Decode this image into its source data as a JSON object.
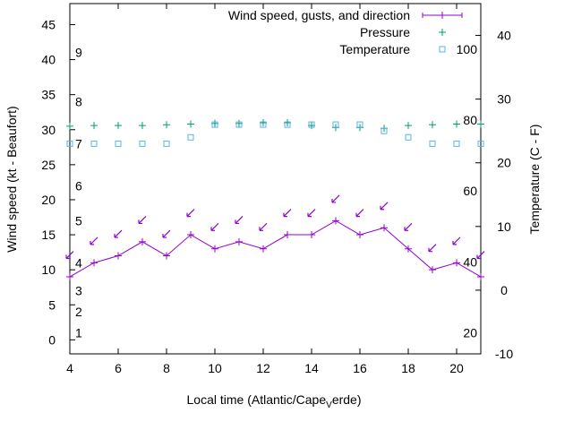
{
  "chart_data": {
    "type": "line",
    "xlabel": "Local time (Atlantic/Cape",
    "xlabel_sub": "V",
    "xlabel_tail": "erde)",
    "ylabel": "Wind speed (kt - Beaufort)",
    "y2label": "Temperature (C - F)",
    "xlim": [
      4,
      21
    ],
    "ylim": [
      -2,
      48
    ],
    "y2lim": [
      -10,
      45
    ],
    "xticks": [
      "4",
      "6",
      "8",
      "10",
      "12",
      "14",
      "16",
      "18",
      "20"
    ],
    "yticks": [
      "0",
      "5",
      "10",
      "15",
      "20",
      "25",
      "30",
      "35",
      "40",
      "45"
    ],
    "y2ticks": [
      "-10",
      "0",
      "10",
      "20",
      "30",
      "40"
    ],
    "beaufort_labels": [
      {
        "text": "1",
        "y": 1
      },
      {
        "text": "2",
        "y": 4
      },
      {
        "text": "3",
        "y": 7
      },
      {
        "text": "4",
        "y": 11
      },
      {
        "text": "5",
        "y": 17
      },
      {
        "text": "6",
        "y": 22
      },
      {
        "text": "7",
        "y": 28
      },
      {
        "text": "8",
        "y": 34
      },
      {
        "text": "9",
        "y": 41
      }
    ],
    "fahrenheit_labels": [
      {
        "text": "20",
        "y2": -6.7
      },
      {
        "text": "40",
        "y2": 4.4
      },
      {
        "text": "60",
        "y2": 15.6
      },
      {
        "text": "80",
        "y2": 26.7
      },
      {
        "text": "100",
        "y2": 37.8
      }
    ],
    "series": [
      {
        "name": "Wind speed, gusts, and direction",
        "color": "#9400d3",
        "x": [
          4,
          5,
          6,
          7,
          8,
          9,
          10,
          11,
          12,
          13,
          14,
          15,
          16,
          17,
          18,
          19,
          20,
          21
        ],
        "y": [
          9,
          11,
          12,
          14,
          12,
          15,
          13,
          14,
          13,
          15,
          15,
          17,
          15,
          16,
          13,
          10,
          11,
          9
        ],
        "gust_y": [
          12,
          14,
          15,
          17,
          15,
          18,
          16,
          17,
          16,
          18,
          18,
          20,
          18,
          19,
          16,
          13,
          14,
          12
        ]
      },
      {
        "name": "Pressure",
        "color": "#009e73",
        "x": [
          4,
          5,
          6,
          7,
          8,
          9,
          10,
          11,
          12,
          13,
          14,
          15,
          16,
          17,
          18,
          19,
          20,
          21
        ],
        "y": [
          30.5,
          30.6,
          30.6,
          30.6,
          30.7,
          30.8,
          30.9,
          30.9,
          31,
          31,
          30.6,
          30.3,
          30.3,
          30.2,
          30.6,
          30.7,
          30.8,
          30.8
        ]
      },
      {
        "name": "Temperature",
        "color": "#56b4e9",
        "x": [
          4,
          5,
          6,
          7,
          8,
          9,
          10,
          11,
          12,
          13,
          14,
          15,
          16,
          17,
          18,
          19,
          20,
          21
        ],
        "y2": [
          23,
          23,
          23,
          23,
          23,
          24,
          26,
          26,
          26,
          26,
          26,
          26,
          26,
          25,
          24,
          23,
          23,
          23
        ]
      }
    ]
  }
}
